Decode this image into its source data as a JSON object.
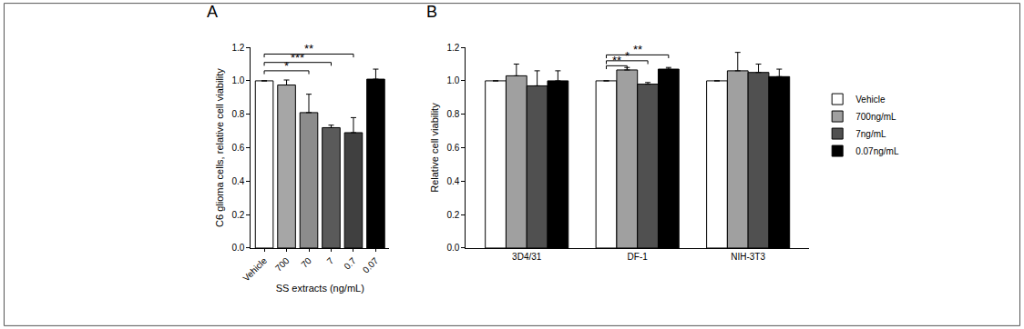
{
  "chart_data": [
    {
      "type": "bar",
      "title": "A",
      "xlabel": "SS extracts (ng/mL)",
      "ylabel": "C6 glioma cells, relative cell viability",
      "categories": [
        "Vehicle",
        "700",
        "70",
        "7",
        "0.7",
        "0.07"
      ],
      "values": [
        1.0,
        0.975,
        0.81,
        0.72,
        0.69,
        1.01
      ],
      "errors": [
        0,
        0.03,
        0.11,
        0.015,
        0.09,
        0.06
      ],
      "colors": [
        "#ffffff",
        "#a6a6a6",
        "#8c8c8c",
        "#5a5a5a",
        "#404040",
        "#000000"
      ],
      "ylim": [
        0,
        1.2
      ],
      "yticks": [
        {
          "value": 0,
          "label": "0.0"
        },
        {
          "value": 0.2,
          "label": "0.2"
        },
        {
          "value": 0.4,
          "label": "0.4"
        },
        {
          "value": 0.6,
          "label": "0.6"
        },
        {
          "value": 0.8,
          "label": "0.8"
        },
        {
          "value": 1,
          "label": "1.0"
        },
        {
          "value": 1.2,
          "label": "1.2"
        }
      ],
      "grid": false,
      "significance": [
        {
          "from": "Vehicle",
          "to": "70",
          "text": "*",
          "y": 1.06
        },
        {
          "from": "Vehicle",
          "to": "7",
          "text": "***",
          "y": 1.11
        },
        {
          "from": "Vehicle",
          "to": "0.7",
          "text": "**",
          "y": 1.16
        }
      ]
    },
    {
      "type": "bar",
      "title": "B",
      "ylabel": "Relative cell viability",
      "categories": [
        "3D4/31",
        "DF-1",
        "NIH-3T3"
      ],
      "series": [
        {
          "name": "Vehicle",
          "color": "#ffffff",
          "values": [
            1.0,
            1.0,
            1.0
          ],
          "errors": [
            0,
            0,
            0
          ]
        },
        {
          "name": "700ng/mL",
          "color": "#a0a0a0",
          "values": [
            1.03,
            1.065,
            1.06
          ],
          "errors": [
            0.07,
            0.015,
            0.11
          ]
        },
        {
          "name": "7ng/mL",
          "color": "#505050",
          "values": [
            0.97,
            0.98,
            1.05
          ],
          "errors": [
            0.09,
            0.01,
            0.05
          ]
        },
        {
          "name": "0.07ng/mL",
          "color": "#000000",
          "values": [
            1.0,
            1.07,
            1.025
          ],
          "errors": [
            0.06,
            0.01,
            0.045
          ]
        }
      ],
      "ylim": [
        0,
        1.2
      ],
      "yticks": [
        {
          "value": 0,
          "label": "0.0"
        },
        {
          "value": 0.2,
          "label": "0.2"
        },
        {
          "value": 0.4,
          "label": "0.4"
        },
        {
          "value": 0.6,
          "label": "0.6"
        },
        {
          "value": 0.8,
          "label": "0.8"
        },
        {
          "value": 1,
          "label": "1.0"
        },
        {
          "value": 1.2,
          "label": "1.2"
        }
      ],
      "grid": false,
      "legend": "right",
      "significance": [
        {
          "category": "DF-1",
          "from": "Vehicle",
          "to": "700ng/mL",
          "text": "**",
          "y": 1.09
        },
        {
          "category": "DF-1",
          "from": "Vehicle",
          "to": "7ng/mL",
          "text": "*",
          "y": 1.12
        },
        {
          "category": "DF-1",
          "from": "Vehicle",
          "to": "0.07ng/mL",
          "text": "**",
          "y": 1.155
        }
      ]
    }
  ]
}
